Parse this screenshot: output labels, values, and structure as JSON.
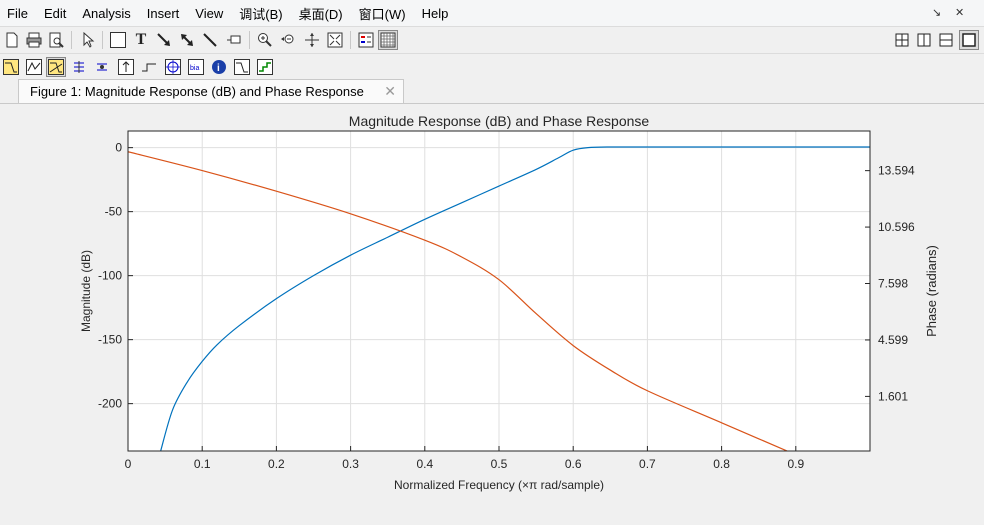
{
  "menu": [
    "File",
    "Edit",
    "Analysis",
    "Insert",
    "View",
    "调试(B)",
    "桌面(D)",
    "窗口(W)",
    "Help"
  ],
  "window_controls": {
    "undock": "↘",
    "close": "✕"
  },
  "tab": {
    "label": "Figure 1: Magnitude Response (dB) and Phase Response",
    "close": "✕"
  },
  "toolbar_icons": {
    "row1": [
      "new-figure-icon",
      "print-icon",
      "print-preview-icon",
      "select-arrow-icon",
      "rectangle-icon",
      "text-icon",
      "arrow-icon",
      "double-arrow-icon",
      "line-icon",
      "pin-icon",
      "zoom-in-icon",
      "zoom-out-icon",
      "pan-icon",
      "full-view-icon",
      "legend-icon",
      "grid-icon"
    ],
    "row1_right": [
      "tile-icon",
      "left-right-icon",
      "top-bottom-icon",
      "single-icon"
    ],
    "row2": [
      "magnitude-icon",
      "phase-icon",
      "magnitude-phase-icon",
      "group-delay-icon",
      "phase-delay-icon",
      "impulse-icon",
      "step-icon",
      "pole-zero-icon",
      "coefficients-icon",
      "info-icon",
      "magnitude-estimate-icon",
      "noise-icon"
    ]
  },
  "chart_data": {
    "type": "line",
    "title": "Magnitude Response (dB) and Phase Response",
    "xlabel": "Normalized Frequency  (×π rad/sample)",
    "ylabel_left": "Magnitude (dB)",
    "ylabel_right": "Phase (radians)",
    "xlim": [
      0,
      1.0
    ],
    "ylim_left": [
      -237,
      13
    ],
    "ylim_right": [
      -1.3,
      15.7
    ],
    "x_ticks": [
      "0",
      "0.1",
      "0.2",
      "0.3",
      "0.4",
      "0.5",
      "0.6",
      "0.7",
      "0.8",
      "0.9"
    ],
    "x_tick_values": [
      0,
      0.1,
      0.2,
      0.3,
      0.4,
      0.5,
      0.6,
      0.7,
      0.8,
      0.9
    ],
    "y_left_ticks": [
      "0",
      "-50",
      "-100",
      "-150",
      "-200"
    ],
    "y_left_tick_values": [
      0,
      -50,
      -100,
      -150,
      -200
    ],
    "y_right_ticks": [
      "13.594",
      "10.596",
      "7.598",
      "4.599",
      "1.601"
    ],
    "y_right_tick_values": [
      13.594,
      10.596,
      7.598,
      4.599,
      1.601
    ],
    "grid": true,
    "series": [
      {
        "axis": "left",
        "color": "#0072bd",
        "x": [
          0.044,
          0.06,
          0.08,
          0.1,
          0.12,
          0.15,
          0.2,
          0.25,
          0.3,
          0.35,
          0.4,
          0.45,
          0.5,
          0.55,
          0.58,
          0.6,
          0.62,
          0.65,
          0.7,
          0.8,
          0.9,
          1.0
        ],
        "y": [
          -237,
          -205,
          -183,
          -167,
          -154,
          -139,
          -118,
          -100,
          -84,
          -70,
          -56,
          -43,
          -30,
          -17,
          -8,
          -2,
          0,
          0.5,
          0.5,
          0.5,
          0.5,
          0.5
        ]
      },
      {
        "axis": "right",
        "color": "#d95319",
        "x": [
          0,
          0.1,
          0.2,
          0.3,
          0.4,
          0.45,
          0.5,
          0.55,
          0.6,
          0.65,
          0.7,
          0.8,
          0.9,
          1.0
        ],
        "y": [
          14.6,
          13.6,
          12.5,
          11.3,
          9.9,
          9.0,
          7.8,
          6.0,
          4.3,
          3.0,
          1.9,
          0.2,
          -1.5,
          -3.2
        ]
      }
    ]
  }
}
